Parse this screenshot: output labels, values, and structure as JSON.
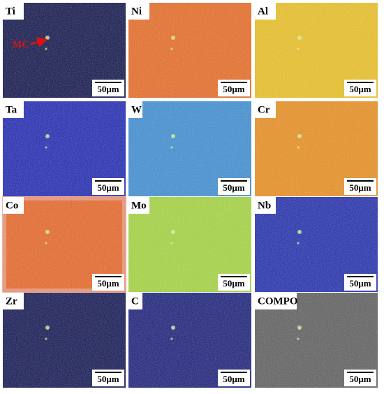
{
  "panels": [
    {
      "label": "Ti",
      "scale": "50μm"
    },
    {
      "label": "Ni",
      "scale": "50μm"
    },
    {
      "label": "Al",
      "scale": "50μm"
    },
    {
      "label": "Ta",
      "scale": "50μm"
    },
    {
      "label": "W",
      "scale": "50μm"
    },
    {
      "label": "Cr",
      "scale": "50μm"
    },
    {
      "label": "Co",
      "scale": "50μm"
    },
    {
      "label": "Mo",
      "scale": "50μm"
    },
    {
      "label": "Nb",
      "scale": "50μm"
    },
    {
      "label": "Zr",
      "scale": "50μm"
    },
    {
      "label": "C",
      "scale": "50μm"
    },
    {
      "label": "COMPO",
      "scale": "50μm"
    }
  ],
  "annotation": "MC"
}
